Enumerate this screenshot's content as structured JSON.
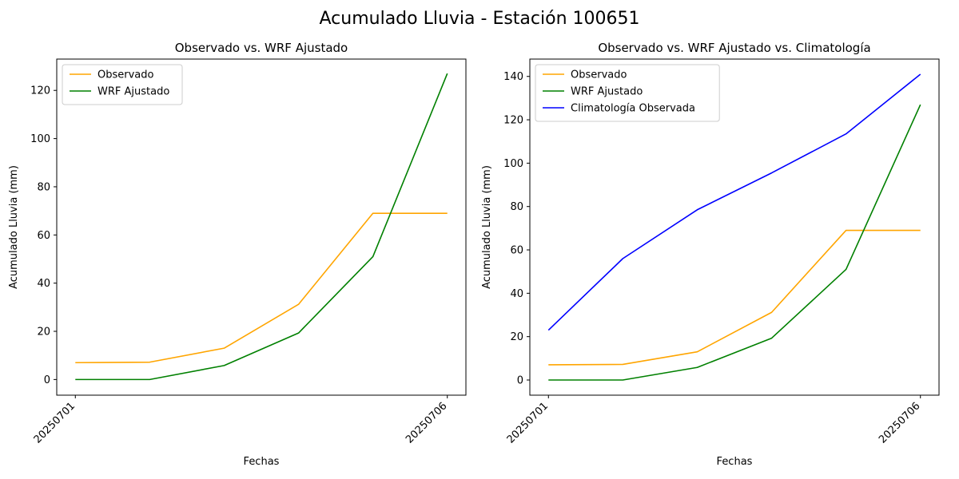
{
  "figure": {
    "suptitle": "Acumulado Lluvia - Estación 100651"
  },
  "chart_data": [
    {
      "type": "line",
      "title": "Observado vs. WRF Ajustado",
      "xlabel": "Fechas",
      "ylabel": "Acumulado Lluvia (mm)",
      "x": [
        20250701,
        20250702,
        20250703,
        20250704,
        20250705,
        20250706
      ],
      "xticks": [
        20250701,
        20250706
      ],
      "xlim": [
        20250700.75,
        20250706.25
      ],
      "ylim": [
        -6.5,
        133
      ],
      "yticks": [
        0,
        20,
        40,
        60,
        80,
        100,
        120
      ],
      "grid": false,
      "legend": "top-left",
      "series": [
        {
          "name": "Observado",
          "color": "#ffa500",
          "values": [
            7.0,
            7.2,
            13.0,
            31.2,
            69.0,
            69.0
          ]
        },
        {
          "name": "WRF Ajustado",
          "color": "#008000",
          "values": [
            0.0,
            0.0,
            5.8,
            19.3,
            51.0,
            127.0
          ]
        }
      ]
    },
    {
      "type": "line",
      "title": "Observado vs. WRF Ajustado vs. Climatología",
      "xlabel": "Fechas",
      "ylabel": "Acumulado Lluvia (mm)",
      "x": [
        20250701,
        20250702,
        20250703,
        20250704,
        20250705,
        20250706
      ],
      "xticks": [
        20250701,
        20250706
      ],
      "xlim": [
        20250700.75,
        20250706.25
      ],
      "ylim": [
        -7,
        148
      ],
      "yticks": [
        0,
        20,
        40,
        60,
        80,
        100,
        120,
        140
      ],
      "grid": false,
      "legend": "top-left",
      "series": [
        {
          "name": "Observado",
          "color": "#ffa500",
          "values": [
            7.0,
            7.2,
            13.0,
            31.2,
            69.0,
            69.0
          ]
        },
        {
          "name": "WRF Ajustado",
          "color": "#008000",
          "values": [
            0.0,
            0.0,
            5.8,
            19.3,
            51.0,
            127.0
          ]
        },
        {
          "name": "Climatología Observada",
          "color": "#0000ff",
          "values": [
            23.0,
            56.0,
            78.5,
            95.5,
            113.5,
            141.0
          ]
        }
      ]
    }
  ]
}
